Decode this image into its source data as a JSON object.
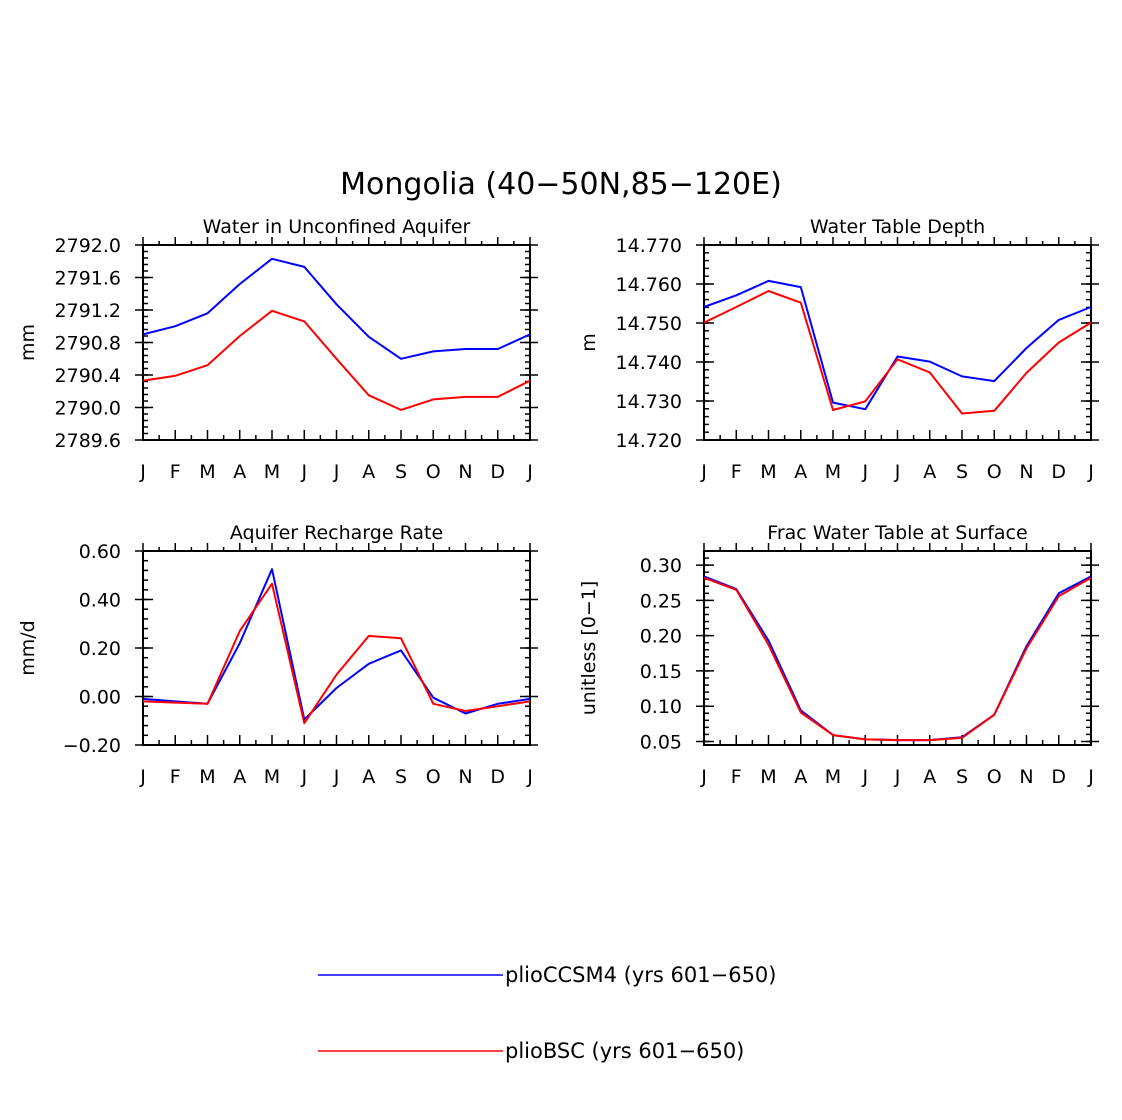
{
  "figure": {
    "title": "Mongolia (40−50N,85−120E)"
  },
  "legend": [
    {
      "label": "plioCCSM4 (yrs 601−650)",
      "color": "#0000ff"
    },
    {
      "label": "plioBSC (yrs 601−650)",
      "color": "#ff0000"
    }
  ],
  "chart_data": [
    {
      "type": "line",
      "title": "Water in Unconfined Aquifer",
      "xlabel": "",
      "ylabel": "mm",
      "categories": [
        "J",
        "F",
        "M",
        "A",
        "M",
        "J",
        "J",
        "A",
        "S",
        "O",
        "N",
        "D",
        "J"
      ],
      "ylim": [
        2789.6,
        2792.0
      ],
      "yticks": [
        "2789.6",
        "2790.0",
        "2790.4",
        "2790.8",
        "2791.2",
        "2791.6",
        "2792.0"
      ],
      "grid": false,
      "series": [
        {
          "name": "plioCCSM4 (yrs 601−650)",
          "color": "#0000ff",
          "values": [
            2790.9,
            2791.0,
            2791.16,
            2791.52,
            2791.83,
            2791.73,
            2791.27,
            2790.87,
            2790.6,
            2790.69,
            2790.72,
            2790.72,
            2790.9
          ]
        },
        {
          "name": "plioBSC (yrs 601−650)",
          "color": "#ff0000",
          "values": [
            2790.33,
            2790.39,
            2790.52,
            2790.88,
            2791.19,
            2791.06,
            2790.6,
            2790.15,
            2789.97,
            2790.1,
            2790.13,
            2790.13,
            2790.33
          ]
        }
      ]
    },
    {
      "type": "line",
      "title": "Water Table Depth",
      "xlabel": "",
      "ylabel": "m",
      "categories": [
        "J",
        "F",
        "M",
        "A",
        "M",
        "J",
        "J",
        "A",
        "S",
        "O",
        "N",
        "D",
        "J"
      ],
      "ylim": [
        14.72,
        14.77
      ],
      "yticks": [
        "14.720",
        "14.730",
        "14.740",
        "14.750",
        "14.760",
        "14.770"
      ],
      "grid": false,
      "series": [
        {
          "name": "plioCCSM4 (yrs 601−650)",
          "color": "#0000ff",
          "values": [
            14.7541,
            14.7571,
            14.7608,
            14.7592,
            14.7296,
            14.7279,
            14.7414,
            14.7401,
            14.7363,
            14.7351,
            14.7436,
            14.7508,
            14.7541
          ]
        },
        {
          "name": "plioBSC (yrs 601−650)",
          "color": "#ff0000",
          "values": [
            14.7501,
            14.7541,
            14.7582,
            14.7552,
            14.7277,
            14.7299,
            14.7407,
            14.7373,
            14.7268,
            14.7275,
            14.7372,
            14.745,
            14.7501
          ]
        }
      ]
    },
    {
      "type": "line",
      "title": "Aquifer Recharge Rate",
      "xlabel": "",
      "ylabel": "mm/d",
      "categories": [
        "J",
        "F",
        "M",
        "A",
        "M",
        "J",
        "J",
        "A",
        "S",
        "O",
        "N",
        "D",
        "J"
      ],
      "ylim": [
        -0.2,
        0.6
      ],
      "yticks": [
        "−0.20",
        "0.00",
        "0.20",
        "0.40",
        "0.60"
      ],
      "grid": false,
      "series": [
        {
          "name": "plioCCSM4 (yrs 601−650)",
          "color": "#0000ff",
          "values": [
            -0.01,
            -0.02,
            -0.03,
            0.22,
            0.525,
            -0.095,
            0.035,
            0.135,
            0.19,
            -0.005,
            -0.07,
            -0.03,
            -0.01
          ]
        },
        {
          "name": "plioBSC (yrs 601−650)",
          "color": "#ff0000",
          "values": [
            -0.02,
            -0.025,
            -0.03,
            0.27,
            0.465,
            -0.11,
            0.09,
            0.25,
            0.24,
            -0.03,
            -0.06,
            -0.04,
            -0.02
          ]
        }
      ]
    },
    {
      "type": "line",
      "title": "Frac Water Table at Surface",
      "xlabel": "",
      "ylabel": "unitless [0−1]",
      "categories": [
        "J",
        "F",
        "M",
        "A",
        "M",
        "J",
        "J",
        "A",
        "S",
        "O",
        "N",
        "D",
        "J"
      ],
      "ylim": [
        0.045,
        0.32
      ],
      "yticks": [
        "0.05",
        "0.10",
        "0.15",
        "0.20",
        "0.25",
        "0.30"
      ],
      "grid": false,
      "series": [
        {
          "name": "plioCCSM4 (yrs 601−650)",
          "color": "#0000ff",
          "values": [
            0.284,
            0.266,
            0.193,
            0.094,
            0.059,
            0.053,
            0.052,
            0.052,
            0.056,
            0.088,
            0.185,
            0.26,
            0.284
          ]
        },
        {
          "name": "plioBSC (yrs 601−650)",
          "color": "#ff0000",
          "values": [
            0.282,
            0.265,
            0.187,
            0.091,
            0.059,
            0.053,
            0.052,
            0.052,
            0.055,
            0.088,
            0.182,
            0.256,
            0.282
          ]
        }
      ]
    }
  ]
}
